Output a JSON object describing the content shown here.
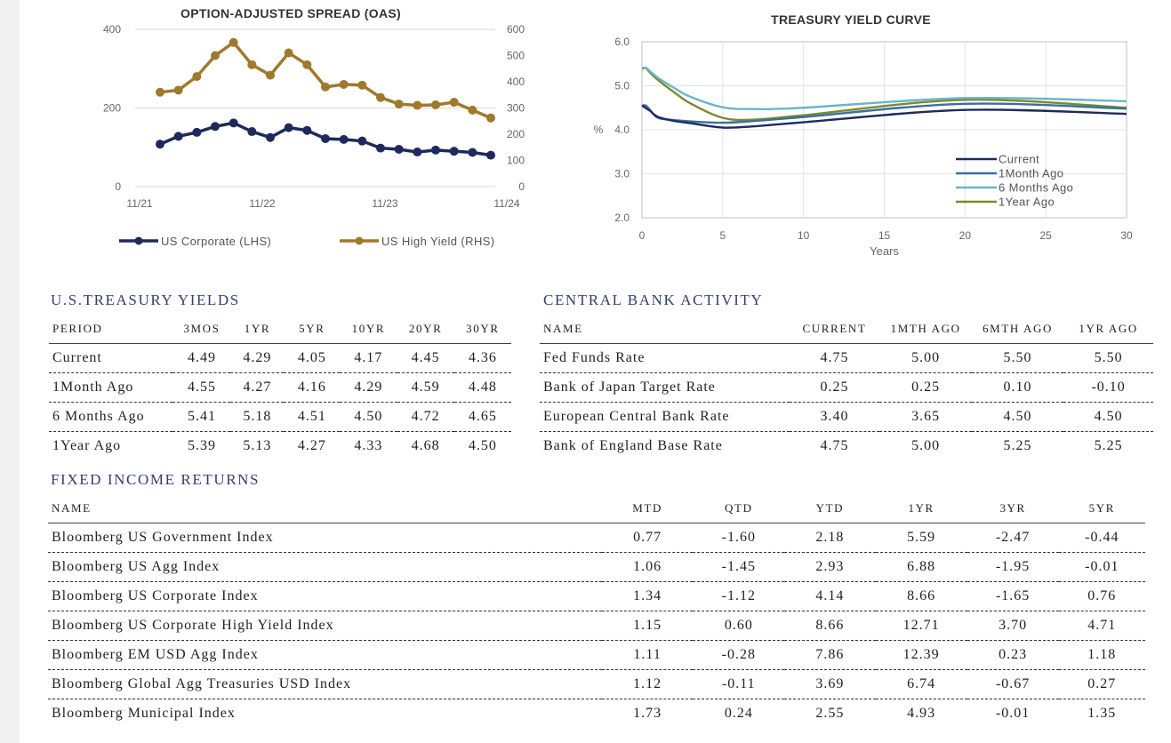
{
  "charts": {
    "oas": {
      "title": "OPTION-ADJUSTED SPREAD (OAS)",
      "left_ticks": [
        "400",
        "200",
        "0"
      ],
      "right_ticks": [
        "600",
        "500",
        "400",
        "300",
        "200",
        "100",
        "0"
      ],
      "x_ticks": [
        "11/21",
        "11/22",
        "11/23",
        "11/24"
      ],
      "legend": [
        "US Corporate (LHS)",
        "US High Yield (RHS)"
      ]
    },
    "curve": {
      "title": "TREASURY YIELD CURVE",
      "y_ticks": [
        "6.0",
        "5.0",
        "4.0",
        "3.0",
        "2.0"
      ],
      "x_ticks": [
        "0",
        "5",
        "10",
        "15",
        "20",
        "25",
        "30"
      ],
      "ylabel": "%",
      "xlabel": "Years",
      "legend": [
        "Current",
        "1Month Ago",
        "6 Months Ago",
        "1Year Ago"
      ]
    }
  },
  "chart_data": [
    {
      "type": "line",
      "title": "OPTION-ADJUSTED SPREAD (OAS)",
      "x_tick_labels": [
        "11/21",
        "11/22",
        "11/23",
        "11/24"
      ],
      "series": [
        {
          "name": "US Corporate (LHS)",
          "axis": "left",
          "color": "#1f2a5c",
          "values": [
            108,
            128,
            138,
            153,
            162,
            140,
            125,
            150,
            143,
            122,
            120,
            116,
            98,
            95,
            88,
            93,
            90,
            87,
            80
          ]
        },
        {
          "name": "US High Yield (RHS)",
          "axis": "right",
          "color": "#a0792c",
          "values": [
            360,
            368,
            420,
            500,
            550,
            465,
            425,
            510,
            465,
            380,
            390,
            387,
            340,
            315,
            310,
            312,
            322,
            292,
            262
          ]
        }
      ],
      "ylim_left": [
        0,
        400
      ],
      "ylim_right": [
        0,
        600
      ]
    },
    {
      "type": "line",
      "title": "TREASURY YIELD CURVE",
      "xlabel": "Years",
      "ylabel": "%",
      "xlim": [
        0,
        30
      ],
      "ylim": [
        2.0,
        6.0
      ],
      "series": [
        {
          "name": "Current",
          "color": "#1f2a5c",
          "x": [
            0,
            0.25,
            0.5,
            1,
            2,
            3,
            5,
            7,
            10,
            20,
            30
          ],
          "y": [
            4.55,
            4.49,
            4.43,
            4.29,
            4.2,
            4.15,
            4.05,
            4.08,
            4.17,
            4.45,
            4.36
          ]
        },
        {
          "name": "1Month Ago",
          "color": "#3a6fa3",
          "x": [
            0,
            0.25,
            0.5,
            1,
            2,
            3,
            5,
            7,
            10,
            20,
            30
          ],
          "y": [
            4.55,
            4.55,
            4.45,
            4.27,
            4.22,
            4.19,
            4.16,
            4.2,
            4.29,
            4.59,
            4.48
          ]
        },
        {
          "name": "6 Months Ago",
          "color": "#6bb5c7",
          "x": [
            0,
            0.25,
            0.5,
            1,
            2,
            3,
            5,
            7,
            10,
            20,
            30
          ],
          "y": [
            5.4,
            5.41,
            5.33,
            5.18,
            4.95,
            4.75,
            4.51,
            4.47,
            4.5,
            4.72,
            4.65
          ]
        },
        {
          "name": "1Year Ago",
          "color": "#7c8a2a",
          "x": [
            0,
            0.25,
            0.5,
            1,
            2,
            3,
            5,
            7,
            10,
            20,
            30
          ],
          "y": [
            5.39,
            5.4,
            5.3,
            5.13,
            4.85,
            4.6,
            4.27,
            4.23,
            4.33,
            4.68,
            4.5
          ]
        }
      ]
    }
  ],
  "treasury": {
    "title": "U.S.TREASURY YIELDS",
    "headers": [
      "PERIOD",
      "3MOS",
      "1YR",
      "5YR",
      "10YR",
      "20YR",
      "30YR"
    ],
    "rows": [
      [
        "Current",
        "4.49",
        "4.29",
        "4.05",
        "4.17",
        "4.45",
        "4.36"
      ],
      [
        "1Month Ago",
        "4.55",
        "4.27",
        "4.16",
        "4.29",
        "4.59",
        "4.48"
      ],
      [
        "6 Months Ago",
        "5.41",
        "5.18",
        "4.51",
        "4.50",
        "4.72",
        "4.65"
      ],
      [
        "1Year Ago",
        "5.39",
        "5.13",
        "4.27",
        "4.33",
        "4.68",
        "4.50"
      ]
    ]
  },
  "central_bank": {
    "title": "CENTRAL BANK ACTIVITY",
    "headers": [
      "NAME",
      "CURRENT",
      "1MTH AGO",
      "6MTH AGO",
      "1YR AGO"
    ],
    "rows": [
      [
        "Fed Funds Rate",
        "4.75",
        "5.00",
        "5.50",
        "5.50"
      ],
      [
        "Bank of Japan Target Rate",
        "0.25",
        "0.25",
        "0.10",
        "-0.10"
      ],
      [
        "European Central Bank Rate",
        "3.40",
        "3.65",
        "4.50",
        "4.50"
      ],
      [
        "Bank of England Base Rate",
        "4.75",
        "5.00",
        "5.25",
        "5.25"
      ]
    ]
  },
  "fixed_income": {
    "title": "FIXED INCOME RETURNS",
    "headers": [
      "NAME",
      "MTD",
      "QTD",
      "YTD",
      "1YR",
      "3YR",
      "5YR"
    ],
    "rows": [
      [
        "Bloomberg US Government Index",
        "0.77",
        "-1.60",
        "2.18",
        "5.59",
        "-2.47",
        "-0.44"
      ],
      [
        "Bloomberg US Agg Index",
        "1.06",
        "-1.45",
        "2.93",
        "6.88",
        "-1.95",
        "-0.01"
      ],
      [
        "Bloomberg US Corporate Index",
        "1.34",
        "-1.12",
        "4.14",
        "8.66",
        "-1.65",
        "0.76"
      ],
      [
        "Bloomberg US Corporate High Yield Index",
        "1.15",
        "0.60",
        "8.66",
        "12.71",
        "3.70",
        "4.71"
      ],
      [
        "Bloomberg EM USD Agg Index",
        "1.11",
        "-0.28",
        "7.86",
        "12.39",
        "0.23",
        "1.18"
      ],
      [
        "Bloomberg Global Agg Treasuries USD Index",
        "1.12",
        "-0.11",
        "3.69",
        "6.74",
        "-0.67",
        "0.27"
      ],
      [
        "Bloomberg Municipal Index",
        "1.73",
        "0.24",
        "2.55",
        "4.93",
        "-0.01",
        "1.35"
      ]
    ]
  }
}
